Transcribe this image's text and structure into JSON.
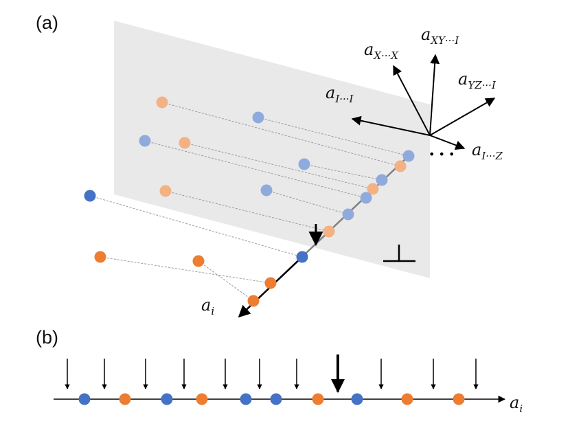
{
  "panel_a": {
    "label": "(a)",
    "axis_labels": {
      "a_xx": {
        "base": "a",
        "sub": "X···X"
      },
      "a_xy": {
        "base": "a",
        "sub": "XY···I"
      },
      "a_yz": {
        "base": "a",
        "sub": "YZ···I"
      },
      "a_ii": {
        "base": "a",
        "sub": "I···I"
      },
      "a_iz": {
        "base": "a",
        "sub": "I···Z"
      }
    },
    "line_label": {
      "base": "a",
      "sub": "i"
    },
    "perp_symbol": "⊥",
    "ellipsis": "• • •"
  },
  "panel_b": {
    "label": "(b)",
    "axis_label": {
      "base": "a",
      "sub": "i"
    }
  },
  "colors": {
    "plane": "#e9e9e9",
    "blue": "#4472c4",
    "orange": "#ed7d31",
    "light_blue": "#8faadc",
    "light_orange": "#f4b183",
    "line": "#7f7f7f",
    "ink": "#000000"
  }
}
